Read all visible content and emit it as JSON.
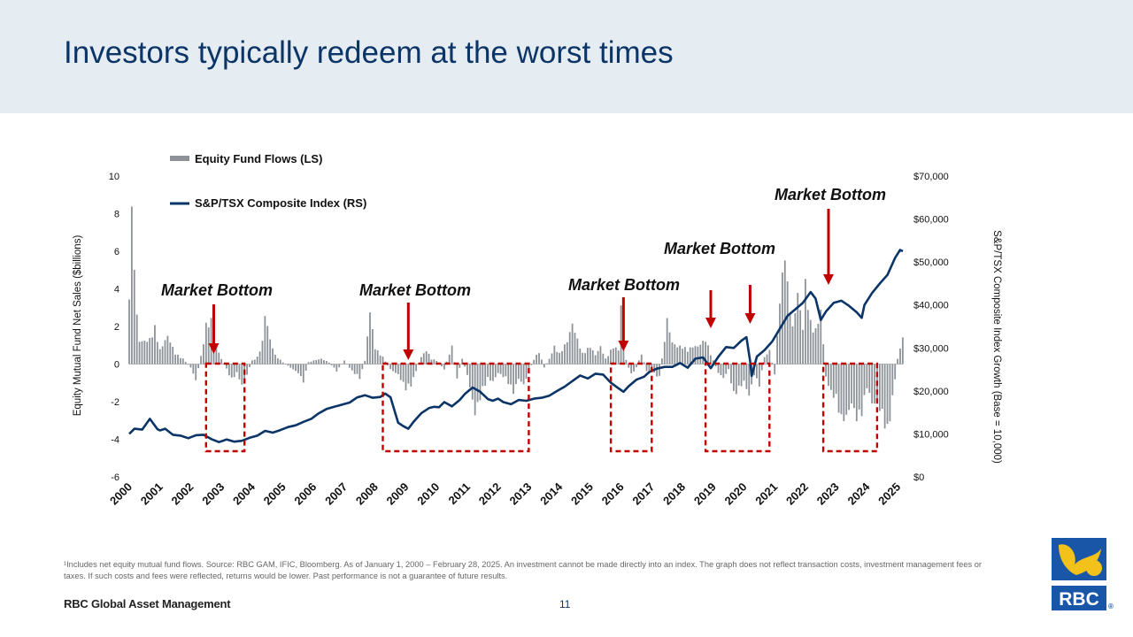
{
  "slide": {
    "title": "Investors typically redeem at the worst times",
    "footnote": "¹Includes net equity mutual fund flows. Source: RBC GAM, IFIC, Bloomberg. As of January 1, 2000 – February 28, 2025. An investment cannot be made directly into an index. The graph does not reflect transaction costs, investment management fees or taxes. If such costs and fees were reflected, returns would be lower. Past performance is not a guarantee of future results.",
    "brand": "RBC Global Asset Management",
    "page_number": "11",
    "logo_text": "RBC",
    "logo_mark": "®"
  },
  "colors": {
    "title": "#0b3467",
    "header_band": "#e5ecf2",
    "bars": "#8c9298",
    "line": "#0b3467",
    "annotation": "#c00000"
  },
  "chart_data": {
    "type": "bar+line",
    "x_ticks": [
      "2000",
      "2001",
      "2002",
      "2003",
      "2004",
      "2005",
      "2006",
      "2007",
      "2008",
      "2009",
      "2010",
      "2011",
      "2012",
      "2013",
      "2014",
      "2015",
      "2016",
      "2017",
      "2018",
      "2019",
      "2020",
      "2021",
      "2022",
      "2023",
      "2024",
      "2025"
    ],
    "ylabel_left": "Equity Mutual Fund Net Sales ($billions)",
    "ylabel_right": "S&P/TSX Composite Index Growth (Base = 10,000)",
    "y_left_ticks": [
      "10",
      "8",
      "6",
      "4",
      "2",
      "0",
      "-2",
      "-4",
      "-6"
    ],
    "y_right_ticks": [
      "$70,000",
      "$60,000",
      "$50,000",
      "$40,000",
      "$30,000",
      "$20,000",
      "$10,000",
      "$0"
    ],
    "ylim_left": [
      -6,
      10
    ],
    "ylim_right": [
      0,
      70000
    ],
    "x_range": [
      2000,
      2025.17
    ],
    "legend": [
      "Equity Fund Flows (LS)",
      "S&P/TSX Composite Index (RS)"
    ],
    "legend_position": "top-left",
    "series_flows_name": "Equity Fund Flows (LS)",
    "series_index_name": "S&P/TSX Composite Index (RS)",
    "flow_anchors": [
      [
        2000.0,
        4.4
      ],
      [
        2000.08,
        8.5
      ],
      [
        2000.17,
        5.8
      ],
      [
        2000.25,
        2.7
      ],
      [
        2000.33,
        1.3
      ],
      [
        2000.5,
        1.3
      ],
      [
        2000.67,
        1.4
      ],
      [
        2000.83,
        2.1
      ],
      [
        2001.0,
        0.8
      ],
      [
        2001.25,
        1.6
      ],
      [
        2001.5,
        0.6
      ],
      [
        2001.75,
        0.3
      ],
      [
        2002.0,
        -0.2
      ],
      [
        2002.17,
        -0.9
      ],
      [
        2002.33,
        0.4
      ],
      [
        2002.5,
        2.2
      ],
      [
        2002.67,
        2.5
      ],
      [
        2002.83,
        1.0
      ],
      [
        2003.0,
        0.3
      ],
      [
        2003.17,
        -0.3
      ],
      [
        2003.33,
        -0.9
      ],
      [
        2003.5,
        -0.5
      ],
      [
        2003.67,
        -1.2
      ],
      [
        2003.83,
        -0.6
      ],
      [
        2004.0,
        0.2
      ],
      [
        2004.17,
        0.4
      ],
      [
        2004.33,
        1.2
      ],
      [
        2004.42,
        2.9
      ],
      [
        2004.58,
        1.4
      ],
      [
        2004.75,
        0.5
      ],
      [
        2005.0,
        0.1
      ],
      [
        2005.25,
        -0.2
      ],
      [
        2005.5,
        -0.5
      ],
      [
        2005.67,
        -1.0
      ],
      [
        2005.83,
        0.1
      ],
      [
        2006.0,
        0.2
      ],
      [
        2006.25,
        0.3
      ],
      [
        2006.5,
        0.1
      ],
      [
        2006.75,
        -0.4
      ],
      [
        2007.0,
        0.2
      ],
      [
        2007.25,
        -0.4
      ],
      [
        2007.5,
        -0.8
      ],
      [
        2007.67,
        0.2
      ],
      [
        2007.83,
        3.0
      ],
      [
        2008.0,
        0.9
      ],
      [
        2008.25,
        0.4
      ],
      [
        2008.5,
        -0.3
      ],
      [
        2008.75,
        -0.6
      ],
      [
        2009.0,
        -1.4
      ],
      [
        2009.17,
        -1.2
      ],
      [
        2009.33,
        -0.4
      ],
      [
        2009.5,
        0.4
      ],
      [
        2009.67,
        0.8
      ],
      [
        2009.83,
        0.3
      ],
      [
        2010.0,
        0.2
      ],
      [
        2010.25,
        -0.3
      ],
      [
        2010.5,
        1.0
      ],
      [
        2010.67,
        -0.8
      ],
      [
        2010.83,
        0.3
      ],
      [
        2011.0,
        -0.6
      ],
      [
        2011.25,
        -2.8
      ],
      [
        2011.5,
        -1.5
      ],
      [
        2011.67,
        -0.8
      ],
      [
        2011.83,
        -1.0
      ],
      [
        2012.0,
        -0.5
      ],
      [
        2012.25,
        -0.8
      ],
      [
        2012.5,
        -1.6
      ],
      [
        2012.67,
        -0.8
      ],
      [
        2012.83,
        -1.2
      ],
      [
        2013.0,
        -0.4
      ],
      [
        2013.17,
        0.3
      ],
      [
        2013.33,
        0.7
      ],
      [
        2013.5,
        -0.2
      ],
      [
        2013.67,
        0.3
      ],
      [
        2013.83,
        1.0
      ],
      [
        2014.0,
        0.6
      ],
      [
        2014.25,
        1.3
      ],
      [
        2014.42,
        2.3
      ],
      [
        2014.58,
        1.4
      ],
      [
        2014.75,
        0.6
      ],
      [
        2015.0,
        1.0
      ],
      [
        2015.17,
        0.5
      ],
      [
        2015.33,
        1.0
      ],
      [
        2015.5,
        0.3
      ],
      [
        2015.75,
        1.0
      ],
      [
        2015.92,
        0.8
      ],
      [
        2016.0,
        3.3
      ],
      [
        2016.08,
        1.5
      ],
      [
        2016.17,
        0.2
      ],
      [
        2016.33,
        -0.6
      ],
      [
        2016.5,
        -0.2
      ],
      [
        2016.67,
        0.6
      ],
      [
        2016.83,
        -0.4
      ],
      [
        2017.0,
        -0.4
      ],
      [
        2017.25,
        -0.8
      ],
      [
        2017.5,
        2.5
      ],
      [
        2017.67,
        1.2
      ],
      [
        2017.83,
        1.0
      ],
      [
        2018.0,
        1.0
      ],
      [
        2018.17,
        0.8
      ],
      [
        2018.33,
        1.0
      ],
      [
        2018.5,
        1.0
      ],
      [
        2018.75,
        1.4
      ],
      [
        2019.0,
        0.2
      ],
      [
        2019.17,
        -0.5
      ],
      [
        2019.33,
        -0.8
      ],
      [
        2019.5,
        -0.3
      ],
      [
        2019.67,
        -1.8
      ],
      [
        2019.83,
        -1.4
      ],
      [
        2020.0,
        -1.0
      ],
      [
        2020.17,
        -1.8
      ],
      [
        2020.33,
        -0.6
      ],
      [
        2020.5,
        -1.2
      ],
      [
        2020.67,
        0.4
      ],
      [
        2020.83,
        0.8
      ],
      [
        2021.0,
        -0.6
      ],
      [
        2021.17,
        3.8
      ],
      [
        2021.25,
        4.9
      ],
      [
        2021.33,
        7.0
      ],
      [
        2021.42,
        4.3
      ],
      [
        2021.58,
        2.0
      ],
      [
        2021.75,
        4.0
      ],
      [
        2021.92,
        2.0
      ],
      [
        2022.0,
        4.6
      ],
      [
        2022.17,
        2.3
      ],
      [
        2022.33,
        1.9
      ],
      [
        2022.5,
        3.0
      ],
      [
        2022.67,
        -0.8
      ],
      [
        2022.83,
        -1.6
      ],
      [
        2023.0,
        -2.0
      ],
      [
        2023.17,
        -3.2
      ],
      [
        2023.33,
        -3.0
      ],
      [
        2023.5,
        -2.2
      ],
      [
        2023.67,
        -3.1
      ],
      [
        2023.83,
        -2.8
      ],
      [
        2024.0,
        -1.3
      ],
      [
        2024.17,
        -2.2
      ],
      [
        2024.33,
        -2.3
      ],
      [
        2024.5,
        -2.8
      ],
      [
        2024.67,
        -4.1
      ],
      [
        2024.83,
        -2.0
      ],
      [
        2025.0,
        0.3
      ],
      [
        2025.17,
        1.5
      ]
    ],
    "index_anchors": [
      [
        2000.0,
        10000
      ],
      [
        2000.17,
        11200
      ],
      [
        2000.42,
        11000
      ],
      [
        2000.67,
        13500
      ],
      [
        2000.92,
        11100
      ],
      [
        2001.0,
        10800
      ],
      [
        2001.17,
        11200
      ],
      [
        2001.42,
        9800
      ],
      [
        2001.67,
        9600
      ],
      [
        2001.92,
        9000
      ],
      [
        2002.17,
        9700
      ],
      [
        2002.42,
        9800
      ],
      [
        2002.67,
        8800
      ],
      [
        2002.92,
        8100
      ],
      [
        2003.17,
        8700
      ],
      [
        2003.42,
        8200
      ],
      [
        2003.67,
        8400
      ],
      [
        2003.92,
        9100
      ],
      [
        2004.17,
        9600
      ],
      [
        2004.42,
        10700
      ],
      [
        2004.67,
        10300
      ],
      [
        2004.92,
        10900
      ],
      [
        2005.17,
        11600
      ],
      [
        2005.42,
        12000
      ],
      [
        2005.67,
        12800
      ],
      [
        2005.92,
        13500
      ],
      [
        2006.17,
        14800
      ],
      [
        2006.42,
        15800
      ],
      [
        2006.67,
        16300
      ],
      [
        2006.92,
        16800
      ],
      [
        2007.17,
        17300
      ],
      [
        2007.42,
        18500
      ],
      [
        2007.67,
        19000
      ],
      [
        2007.92,
        18400
      ],
      [
        2008.17,
        18600
      ],
      [
        2008.33,
        19400
      ],
      [
        2008.5,
        18500
      ],
      [
        2008.75,
        12600
      ],
      [
        2008.92,
        11800
      ],
      [
        2009.08,
        11200
      ],
      [
        2009.25,
        12800
      ],
      [
        2009.5,
        14800
      ],
      [
        2009.75,
        16000
      ],
      [
        2009.92,
        16300
      ],
      [
        2010.08,
        16200
      ],
      [
        2010.25,
        17400
      ],
      [
        2010.5,
        16400
      ],
      [
        2010.75,
        17900
      ],
      [
        2010.92,
        19300
      ],
      [
        2011.17,
        20800
      ],
      [
        2011.42,
        19800
      ],
      [
        2011.67,
        18100
      ],
      [
        2011.83,
        17700
      ],
      [
        2012.0,
        18200
      ],
      [
        2012.17,
        17400
      ],
      [
        2012.42,
        16900
      ],
      [
        2012.67,
        17900
      ],
      [
        2012.92,
        17700
      ],
      [
        2013.17,
        18200
      ],
      [
        2013.42,
        18400
      ],
      [
        2013.67,
        18900
      ],
      [
        2013.92,
        20000
      ],
      [
        2014.17,
        21000
      ],
      [
        2014.42,
        22300
      ],
      [
        2014.67,
        23600
      ],
      [
        2014.92,
        22900
      ],
      [
        2015.17,
        24000
      ],
      [
        2015.42,
        23800
      ],
      [
        2015.67,
        21900
      ],
      [
        2015.92,
        20600
      ],
      [
        2016.08,
        19800
      ],
      [
        2016.25,
        21100
      ],
      [
        2016.5,
        22600
      ],
      [
        2016.75,
        23300
      ],
      [
        2016.92,
        24400
      ],
      [
        2017.17,
        25200
      ],
      [
        2017.42,
        25600
      ],
      [
        2017.67,
        25600
      ],
      [
        2017.92,
        26500
      ],
      [
        2018.17,
        25400
      ],
      [
        2018.42,
        27500
      ],
      [
        2018.67,
        27800
      ],
      [
        2018.92,
        25300
      ],
      [
        2019.17,
        28000
      ],
      [
        2019.42,
        30200
      ],
      [
        2019.67,
        30000
      ],
      [
        2019.92,
        31700
      ],
      [
        2020.08,
        32500
      ],
      [
        2020.2,
        27000
      ],
      [
        2020.25,
        23500
      ],
      [
        2020.42,
        28000
      ],
      [
        2020.67,
        29500
      ],
      [
        2020.92,
        31500
      ],
      [
        2021.17,
        34500
      ],
      [
        2021.42,
        37500
      ],
      [
        2021.67,
        39000
      ],
      [
        2021.92,
        40500
      ],
      [
        2022.17,
        43000
      ],
      [
        2022.33,
        41500
      ],
      [
        2022.5,
        36500
      ],
      [
        2022.67,
        38500
      ],
      [
        2022.92,
        40500
      ],
      [
        2023.17,
        41000
      ],
      [
        2023.42,
        39800
      ],
      [
        2023.67,
        38300
      ],
      [
        2023.83,
        37000
      ],
      [
        2023.92,
        40000
      ],
      [
        2024.17,
        42800
      ],
      [
        2024.42,
        45000
      ],
      [
        2024.67,
        47000
      ],
      [
        2024.92,
        51000
      ],
      [
        2025.08,
        52800
      ],
      [
        2025.17,
        52500
      ]
    ],
    "annotations": [
      {
        "label": "Market Bottom",
        "arrow_x": 2002.75
      },
      {
        "label": "Market Bottom",
        "arrow_x": 2009.08
      },
      {
        "label": "Market Bottom",
        "arrow_x": 2016.08
      },
      {
        "label": "Market Bottom",
        "arrow_x": 2018.92
      },
      {
        "label": "Market Bottom",
        "arrow_x": 2020.2
      },
      {
        "label": "Market Bottom",
        "arrow_x": 2022.75
      }
    ],
    "redemption_boxes": [
      [
        2002.5,
        2003.75
      ],
      [
        2008.25,
        2013.0
      ],
      [
        2015.67,
        2017.0
      ],
      [
        2018.75,
        2020.83
      ],
      [
        2022.58,
        2024.33
      ]
    ]
  }
}
